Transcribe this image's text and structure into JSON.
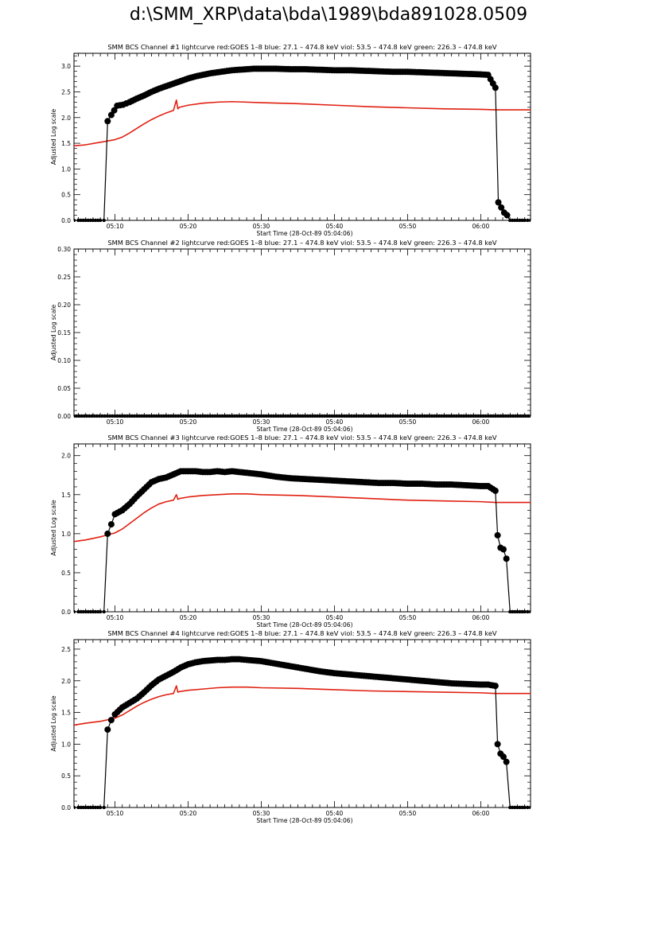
{
  "page": {
    "title": "d:\\SMM_XRP\\data\\bda\\1989\\bda891028.0509"
  },
  "colors": {
    "goes": "#e02010",
    "bcs": "#000000",
    "axis": "#000000"
  },
  "chart_data": [
    {
      "type": "line",
      "title": "SMM BCS Channel #1 lightcurve  red:GOES 1–8  blue: 27.1 – 474.8 keV  viol: 53.5 – 474.8 keV  green: 226.3 – 474.8 keV",
      "xlabel": "Start Time (28-Oct-89 05:04:06)",
      "ylabel": "Adjusted Log scale",
      "xlim": [
        4.4,
        66.8
      ],
      "ylim": [
        0,
        3.25
      ],
      "xticks": [
        10,
        20,
        30,
        40,
        50,
        60
      ],
      "xtick_labels": [
        "05:10",
        "05:20",
        "05:30",
        "05:40",
        "05:50",
        "06:00"
      ],
      "yticks": [
        0,
        0.5,
        1.0,
        1.5,
        2.0,
        2.5,
        3.0
      ],
      "ytick_labels": [
        "0.0",
        "0.5",
        "1.0",
        "1.5",
        "2.0",
        "2.5",
        "3.0"
      ],
      "series": [
        {
          "color": "#e02010",
          "x": [
            4.4,
            6,
            8,
            10,
            11,
            12,
            13,
            14,
            15,
            16,
            17,
            18,
            18.4,
            18.6,
            18.8,
            20,
            22,
            24,
            26,
            28,
            30,
            35,
            40,
            45,
            50,
            55,
            60,
            62,
            66.8
          ],
          "y": [
            1.45,
            1.47,
            1.52,
            1.57,
            1.62,
            1.7,
            1.79,
            1.88,
            1.96,
            2.03,
            2.09,
            2.14,
            2.34,
            2.17,
            2.2,
            2.24,
            2.28,
            2.3,
            2.31,
            2.3,
            2.29,
            2.27,
            2.24,
            2.21,
            2.19,
            2.17,
            2.16,
            2.15,
            2.15
          ]
        },
        {
          "color": "#000000",
          "marker": "circle",
          "x": [
            4.4,
            5,
            6,
            7,
            8,
            8.5,
            9.0,
            9.5,
            10.3,
            11.1,
            12,
            13,
            14,
            15,
            16,
            17,
            18,
            19,
            20,
            21,
            22,
            23,
            24,
            25,
            26,
            27,
            28,
            29,
            30,
            32,
            34,
            36,
            38,
            40,
            42,
            44,
            46,
            48,
            50,
            52,
            54,
            56,
            58,
            60,
            61,
            62.0,
            62.4,
            62.8,
            63.2,
            63.6,
            64,
            65,
            66,
            66.8
          ],
          "y": [
            0,
            0,
            0,
            0,
            0,
            0,
            1.93,
            2.05,
            2.23,
            2.25,
            2.3,
            2.37,
            2.43,
            2.5,
            2.56,
            2.61,
            2.66,
            2.71,
            2.76,
            2.8,
            2.83,
            2.86,
            2.88,
            2.9,
            2.92,
            2.93,
            2.94,
            2.95,
            2.95,
            2.95,
            2.94,
            2.94,
            2.93,
            2.92,
            2.92,
            2.91,
            2.9,
            2.89,
            2.89,
            2.88,
            2.87,
            2.86,
            2.85,
            2.84,
            2.83,
            2.58,
            0.35,
            0.25,
            0.15,
            0.1,
            0,
            0,
            0,
            0
          ]
        }
      ]
    },
    {
      "type": "line",
      "title": "SMM BCS Channel #2 lightcurve  red:GOES 1–8  blue: 27.1 – 474.8 keV  viol: 53.5 – 474.8 keV  green: 226.3 – 474.8 keV",
      "xlabel": "Start Time (28-Oct-89 05:04:06)",
      "ylabel": "Adjusted Log scale",
      "xlim": [
        4.4,
        66.8
      ],
      "ylim": [
        0,
        0.3
      ],
      "xticks": [
        10,
        20,
        30,
        40,
        50,
        60
      ],
      "xtick_labels": [
        "05:10",
        "05:20",
        "05:30",
        "05:40",
        "05:50",
        "06:00"
      ],
      "yticks": [
        0,
        0.05,
        0.1,
        0.15,
        0.2,
        0.25,
        0.3
      ],
      "ytick_labels": [
        "0.00",
        "0.05",
        "0.10",
        "0.15",
        "0.20",
        "0.25",
        "0.30"
      ],
      "series": [
        {
          "color": "#000000",
          "marker": "circle",
          "x": [
            4.4,
            10,
            20,
            30,
            40,
            50,
            60,
            66.8
          ],
          "y": [
            0,
            0,
            0,
            0,
            0,
            0,
            0,
            0
          ]
        }
      ]
    },
    {
      "type": "line",
      "title": "SMM BCS Channel #3 lightcurve  red:GOES 1–8  blue: 27.1 – 474.8 keV  viol: 53.5 – 474.8 keV  green: 226.3 – 474.8 keV",
      "xlabel": "Start Time (28-Oct-89 05:04:06)",
      "ylabel": "Adjusted Log scale",
      "xlim": [
        4.4,
        66.8
      ],
      "ylim": [
        0,
        2.15
      ],
      "xticks": [
        10,
        20,
        30,
        40,
        50,
        60
      ],
      "xtick_labels": [
        "05:10",
        "05:20",
        "05:30",
        "05:40",
        "05:50",
        "06:00"
      ],
      "yticks": [
        0,
        0.5,
        1.0,
        1.5,
        2.0
      ],
      "ytick_labels": [
        "0.0",
        "0.5",
        "1.0",
        "1.5",
        "2.0"
      ],
      "series": [
        {
          "color": "#e02010",
          "x": [
            4.4,
            6,
            8,
            10,
            11,
            12,
            13,
            14,
            15,
            16,
            17,
            18,
            18.4,
            18.6,
            18.8,
            20,
            22,
            24,
            26,
            28,
            30,
            35,
            40,
            45,
            50,
            55,
            60,
            62,
            66.8
          ],
          "y": [
            0.9,
            0.92,
            0.96,
            1.01,
            1.06,
            1.13,
            1.2,
            1.27,
            1.33,
            1.38,
            1.41,
            1.43,
            1.5,
            1.44,
            1.45,
            1.47,
            1.49,
            1.5,
            1.51,
            1.51,
            1.5,
            1.49,
            1.47,
            1.45,
            1.43,
            1.42,
            1.41,
            1.4,
            1.4
          ]
        },
        {
          "color": "#000000",
          "marker": "circle",
          "x": [
            4.4,
            5,
            6,
            7,
            8,
            8.5,
            9.0,
            9.5,
            10,
            11,
            12,
            13,
            14,
            15,
            16,
            17,
            18,
            19,
            20,
            21,
            22,
            23,
            24,
            25,
            26,
            27,
            28,
            29,
            30,
            32,
            34,
            36,
            38,
            40,
            42,
            44,
            46,
            48,
            50,
            52,
            54,
            56,
            58,
            60,
            61,
            62.0,
            62.3,
            62.7,
            63.1,
            63.5,
            64,
            65,
            66,
            66.8
          ],
          "y": [
            0,
            0,
            0,
            0,
            0,
            0,
            1.0,
            1.12,
            1.25,
            1.3,
            1.38,
            1.48,
            1.57,
            1.66,
            1.7,
            1.72,
            1.76,
            1.8,
            1.8,
            1.8,
            1.79,
            1.79,
            1.8,
            1.79,
            1.8,
            1.79,
            1.78,
            1.77,
            1.76,
            1.73,
            1.71,
            1.7,
            1.69,
            1.68,
            1.67,
            1.66,
            1.65,
            1.65,
            1.64,
            1.64,
            1.63,
            1.63,
            1.62,
            1.61,
            1.61,
            1.55,
            0.98,
            0.82,
            0.8,
            0.68,
            0,
            0,
            0,
            0
          ]
        }
      ]
    },
    {
      "type": "line",
      "title": "SMM BCS Channel #4 lightcurve  red:GOES 1–8  blue: 27.1 – 474.8 keV  viol: 53.5 – 474.8 keV  green: 226.3 – 474.8 keV",
      "xlabel": "Start Time (28-Oct-89 05:04:06)",
      "ylabel": "Adjusted Log scale",
      "xlim": [
        4.4,
        66.8
      ],
      "ylim": [
        0,
        2.65
      ],
      "xticks": [
        10,
        20,
        30,
        40,
        50,
        60
      ],
      "xtick_labels": [
        "05:10",
        "05:20",
        "05:30",
        "05:40",
        "05:50",
        "06:00"
      ],
      "yticks": [
        0,
        0.5,
        1.0,
        1.5,
        2.0,
        2.5
      ],
      "ytick_labels": [
        "0.0",
        "0.5",
        "1.0",
        "1.5",
        "2.0",
        "2.5"
      ],
      "series": [
        {
          "color": "#e02010",
          "x": [
            4.4,
            6,
            8,
            10,
            11,
            12,
            13,
            14,
            15,
            16,
            17,
            18,
            18.4,
            18.6,
            18.8,
            20,
            22,
            24,
            26,
            28,
            30,
            35,
            40,
            45,
            50,
            55,
            60,
            62,
            66.8
          ],
          "y": [
            1.3,
            1.33,
            1.36,
            1.41,
            1.46,
            1.53,
            1.6,
            1.66,
            1.71,
            1.75,
            1.78,
            1.8,
            1.92,
            1.82,
            1.83,
            1.85,
            1.87,
            1.89,
            1.9,
            1.9,
            1.89,
            1.88,
            1.86,
            1.84,
            1.83,
            1.82,
            1.81,
            1.8,
            1.8
          ]
        },
        {
          "color": "#000000",
          "marker": "circle",
          "x": [
            4.4,
            5,
            6,
            7,
            8,
            8.5,
            9.0,
            9.5,
            10,
            11,
            12,
            13,
            14,
            15,
            16,
            17,
            18,
            19,
            20,
            21,
            22,
            23,
            24,
            25,
            26,
            27,
            28,
            29,
            30,
            32,
            34,
            36,
            38,
            40,
            42,
            44,
            46,
            48,
            50,
            52,
            54,
            56,
            58,
            60,
            61,
            62.0,
            62.3,
            62.7,
            63.1,
            63.5,
            64,
            65,
            66,
            66.8
          ],
          "y": [
            0,
            0,
            0,
            0,
            0,
            0,
            1.23,
            1.38,
            1.47,
            1.58,
            1.65,
            1.72,
            1.82,
            1.93,
            2.02,
            2.08,
            2.14,
            2.21,
            2.26,
            2.29,
            2.31,
            2.32,
            2.33,
            2.33,
            2.34,
            2.34,
            2.33,
            2.32,
            2.31,
            2.27,
            2.23,
            2.19,
            2.15,
            2.12,
            2.1,
            2.08,
            2.06,
            2.04,
            2.02,
            2.0,
            1.98,
            1.96,
            1.95,
            1.94,
            1.94,
            1.92,
            1.0,
            0.85,
            0.8,
            0.72,
            0,
            0,
            0,
            0
          ]
        }
      ]
    }
  ]
}
